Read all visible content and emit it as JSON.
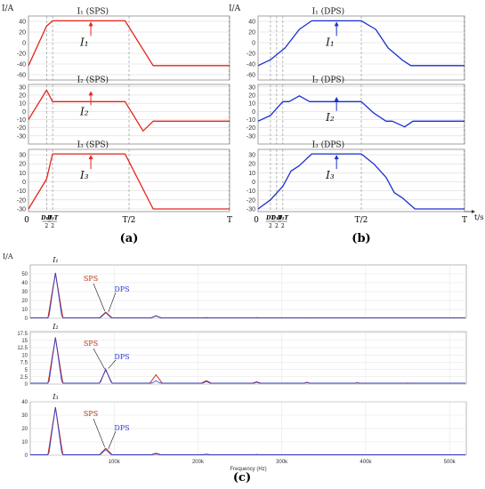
{
  "chart_data": [
    {
      "id": "a",
      "type": "line",
      "caption": "(a)",
      "y_axis_unit": "I/A",
      "x_ticks": [
        "0",
        "T/2",
        "T"
      ],
      "x_phase_labels": [
        {
          "num": "D₁T",
          "den": "2"
        },
        {
          "num": "D₂T",
          "den": "2"
        }
      ],
      "grid": "dashed",
      "color": "#e8231c",
      "panels": [
        {
          "title": "I₁ (SPS)",
          "annotation": "I₁",
          "ylim": [
            -70,
            50
          ],
          "yticks": [
            40,
            20,
            0,
            -20,
            -40,
            -60
          ],
          "x": [
            0,
            0.09,
            0.12,
            0.48,
            0.62,
            1.0
          ],
          "y": [
            -43,
            31,
            41,
            41,
            -43,
            -43
          ]
        },
        {
          "title": "I₂ (SPS)",
          "annotation": "I₂",
          "ylim": [
            -40,
            33
          ],
          "yticks": [
            30,
            20,
            10,
            0,
            -10,
            -20,
            -30
          ],
          "x": [
            0,
            0.09,
            0.12,
            0.48,
            0.57,
            0.62,
            1.0
          ],
          "y": [
            -10,
            26,
            12,
            12,
            -24,
            -12,
            -12
          ]
        },
        {
          "title": "I₃ (SPS)",
          "annotation": "I₃",
          "ylim": [
            -33,
            36
          ],
          "yticks": [
            30,
            20,
            10,
            0,
            -10,
            -20,
            -30
          ],
          "x": [
            0,
            0.09,
            0.12,
            0.48,
            0.62,
            1.0
          ],
          "y": [
            -30,
            3,
            31,
            31,
            -30,
            -30
          ]
        }
      ]
    },
    {
      "id": "b",
      "type": "line",
      "caption": "(b)",
      "y_axis_unit": "I/A",
      "x_axis_unit": "t/s",
      "x_ticks": [
        "0",
        "T/2",
        "T"
      ],
      "x_phase_labels": [
        {
          "num": "DT",
          "den": "2"
        },
        {
          "num": "D₁T",
          "den": "2"
        },
        {
          "num": "D₂T",
          "den": "2"
        }
      ],
      "grid": "dashed",
      "color": "#1a2fd0",
      "panels": [
        {
          "title": "I₁ (DPS)",
          "annotation": "I₁",
          "ylim": [
            -70,
            50
          ],
          "yticks": [
            40,
            20,
            0,
            -20,
            -40,
            -60
          ],
          "x": [
            0,
            0.06,
            0.13,
            0.2,
            0.26,
            0.5,
            0.57,
            0.63,
            0.7,
            0.74,
            1.0
          ],
          "y": [
            -43,
            -32,
            -10,
            25,
            41,
            41,
            25,
            -10,
            -33,
            -43,
            -43
          ]
        },
        {
          "title": "I₂ (DPS)",
          "annotation": "I₂",
          "ylim": [
            -40,
            33
          ],
          "yticks": [
            30,
            20,
            10,
            0,
            -10,
            -20,
            -30
          ],
          "x": [
            0,
            0.06,
            0.12,
            0.15,
            0.2,
            0.25,
            0.5,
            0.56,
            0.62,
            0.65,
            0.71,
            0.75,
            1.0
          ],
          "y": [
            -12,
            -5,
            12,
            12,
            19,
            12,
            12,
            -2,
            -12,
            -12,
            -19,
            -12,
            -12
          ]
        },
        {
          "title": "I₃ (DPS)",
          "annotation": "I₃",
          "ylim": [
            -33,
            36
          ],
          "yticks": [
            30,
            20,
            10,
            0,
            -10,
            -20,
            -30
          ],
          "x": [
            0,
            0.06,
            0.12,
            0.16,
            0.2,
            0.26,
            0.5,
            0.56,
            0.62,
            0.66,
            0.7,
            0.76,
            1.0
          ],
          "y": [
            -30,
            -20,
            -5,
            12,
            18,
            31,
            31,
            20,
            5,
            -12,
            -18,
            -30,
            -30
          ]
        }
      ]
    },
    {
      "id": "c",
      "type": "line",
      "caption": "(c)",
      "y_axis_unit": "I/A",
      "xlabel": "Frequency (Hz)",
      "xlim": [
        0,
        520000
      ],
      "xticks": [
        100000,
        200000,
        300000,
        400000,
        500000
      ],
      "xtick_labels": [
        "100k",
        "200k",
        "300k",
        "400k",
        "500k"
      ],
      "series_labels": [
        {
          "text": "SPS",
          "color": "#b23a0f"
        },
        {
          "text": "DPS",
          "color": "#2a3bd6"
        }
      ],
      "sps_color": "#cc2200",
      "dps_color": "#2a3bd6",
      "harmonic_freqs": [
        30000,
        90000,
        150000,
        210000,
        270000,
        330000,
        390000,
        450000,
        510000
      ],
      "panels": [
        {
          "name": "I₁",
          "ylim": [
            0,
            60
          ],
          "yticks": [
            0,
            10,
            20,
            30,
            40,
            50
          ],
          "sps_peaks": [
            51,
            7,
            2.5,
            0.8,
            0.7,
            0.5,
            0.4,
            0.3,
            0.2
          ],
          "dps_peaks": [
            51,
            6.2,
            3,
            0.6,
            0.8,
            0.4,
            0.5,
            0.3,
            0.2
          ]
        },
        {
          "name": "I₂",
          "ylim": [
            0,
            18
          ],
          "yticks": [
            0,
            2.5,
            5,
            7.5,
            10,
            12.5,
            15,
            17.5
          ],
          "sps_peaks": [
            16,
            4.8,
            3.2,
            1.2,
            0.8,
            0.6,
            0.5,
            0.4,
            0.3
          ],
          "dps_peaks": [
            16,
            5.2,
            1.1,
            0.9,
            0.6,
            0.5,
            0.4,
            0.3,
            0.2
          ]
        },
        {
          "name": "I₃",
          "ylim": [
            0,
            40
          ],
          "yticks": [
            0,
            10,
            20,
            30,
            40
          ],
          "sps_peaks": [
            36,
            5.2,
            1.5,
            0.8,
            0.6,
            0.5,
            0.4,
            0.3,
            0.2
          ],
          "dps_peaks": [
            36,
            4.3,
            1.0,
            0.6,
            0.5,
            0.4,
            0.3,
            0.2,
            0.2
          ]
        }
      ]
    }
  ]
}
